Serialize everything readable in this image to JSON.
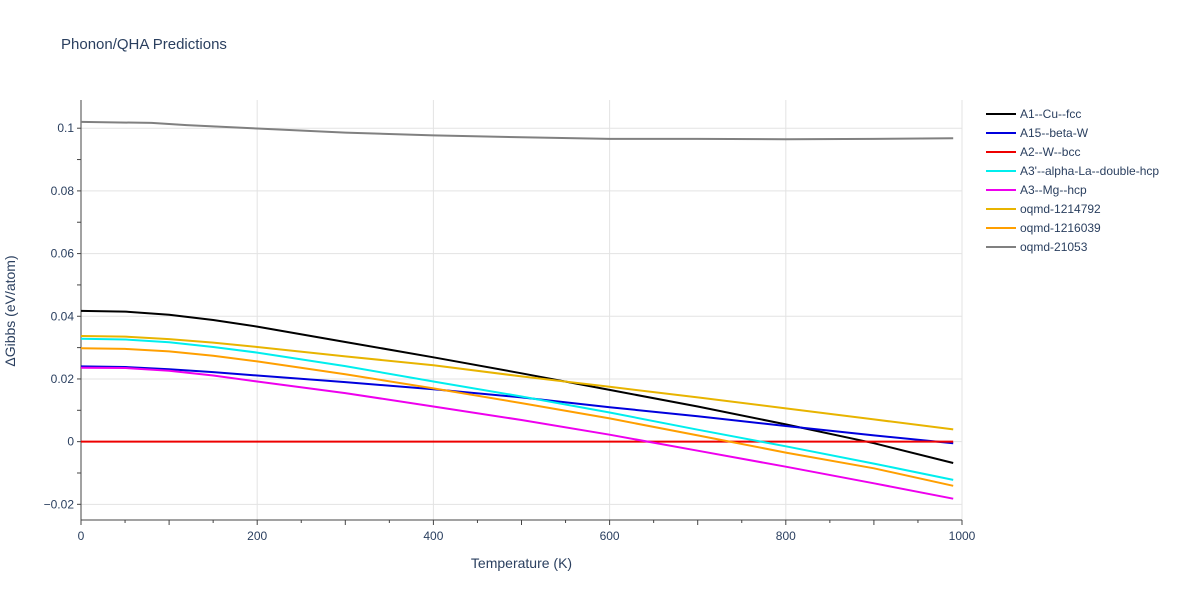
{
  "chart_data": {
    "type": "line",
    "title": "Phonon/QHA Predictions",
    "xlabel": "Temperature (K)",
    "ylabel": "ΔGibbs (eV/atom)",
    "xlim": [
      0,
      1000
    ],
    "ylim": [
      -0.025,
      0.109
    ],
    "xticks": [
      0,
      200,
      400,
      600,
      800,
      1000
    ],
    "xtick_labels": [
      "0",
      "200",
      "400",
      "600",
      "800",
      "1000"
    ],
    "yticks": [
      -0.02,
      0,
      0.02,
      0.04,
      0.06,
      0.08,
      0.1
    ],
    "ytick_labels": [
      "−0.02",
      "0",
      "0.02",
      "0.04",
      "0.06",
      "0.08",
      "0.1"
    ],
    "grid": true,
    "legend_position": "right",
    "series": [
      {
        "name": "A1--Cu--fcc",
        "color": "#000000",
        "x": [
          0,
          50,
          100,
          150,
          200,
          300,
          400,
          500,
          600,
          700,
          800,
          900,
          990
        ],
        "y": [
          0.0417,
          0.0415,
          0.0405,
          0.0388,
          0.0367,
          0.0318,
          0.0269,
          0.0218,
          0.0165,
          0.0112,
          0.0055,
          -0.0005,
          -0.0068
        ]
      },
      {
        "name": "A15--beta-W",
        "color": "#0000dd",
        "x": [
          0,
          50,
          100,
          150,
          200,
          300,
          400,
          500,
          600,
          700,
          800,
          900,
          990
        ],
        "y": [
          0.024,
          0.0238,
          0.0231,
          0.0222,
          0.0211,
          0.019,
          0.0167,
          0.0141,
          0.011,
          0.0081,
          0.005,
          0.002,
          -0.0005
        ]
      },
      {
        "name": "A2--W--bcc",
        "color": "#ee0000",
        "x": [
          0,
          990
        ],
        "y": [
          0.0,
          0.0
        ]
      },
      {
        "name": "A3'--alpha-La--double-hcp",
        "color": "#00eeee",
        "x": [
          0,
          50,
          100,
          150,
          200,
          300,
          400,
          500,
          600,
          700,
          800,
          900,
          990
        ],
        "y": [
          0.0328,
          0.0326,
          0.0317,
          0.0302,
          0.0284,
          0.0241,
          0.0192,
          0.0144,
          0.0093,
          0.0038,
          -0.0015,
          -0.007,
          -0.0122
        ]
      },
      {
        "name": "A3--Mg--hcp",
        "color": "#ee00ee",
        "x": [
          0,
          50,
          100,
          150,
          200,
          300,
          400,
          500,
          600,
          700,
          800,
          900,
          990
        ],
        "y": [
          0.0236,
          0.0235,
          0.0226,
          0.0211,
          0.0192,
          0.0155,
          0.0112,
          0.0069,
          0.0022,
          -0.0029,
          -0.008,
          -0.0133,
          -0.0182
        ]
      },
      {
        "name": "oqmd-1214792",
        "color": "#e8b400",
        "x": [
          0,
          50,
          100,
          150,
          200,
          300,
          400,
          500,
          600,
          700,
          800,
          900,
          990
        ],
        "y": [
          0.0337,
          0.0335,
          0.0327,
          0.0316,
          0.0302,
          0.0272,
          0.0244,
          0.0208,
          0.0175,
          0.0141,
          0.0106,
          0.0071,
          0.0039
        ]
      },
      {
        "name": "oqmd-1216039",
        "color": "#ff9f00",
        "x": [
          0,
          50,
          100,
          150,
          200,
          300,
          400,
          500,
          600,
          700,
          800,
          900,
          990
        ],
        "y": [
          0.0298,
          0.0296,
          0.0288,
          0.0274,
          0.0256,
          0.0215,
          0.017,
          0.0123,
          0.0074,
          0.002,
          -0.0035,
          -0.0085,
          -0.0141
        ]
      },
      {
        "name": "oqmd-21053",
        "color": "#808080",
        "x": [
          0,
          80,
          120,
          200,
          300,
          400,
          500,
          600,
          700,
          800,
          900,
          990
        ],
        "y": [
          0.102,
          0.1017,
          0.101,
          0.0999,
          0.0986,
          0.0977,
          0.0971,
          0.0966,
          0.0966,
          0.0965,
          0.0966,
          0.0968
        ]
      }
    ]
  }
}
